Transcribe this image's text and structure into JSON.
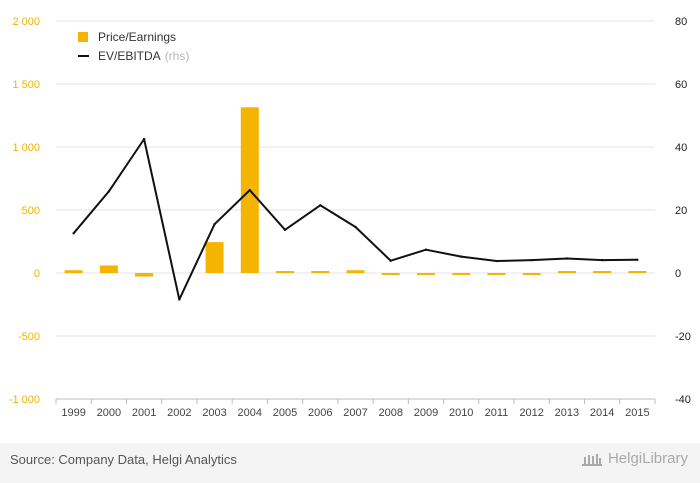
{
  "chart_data": {
    "type": "bar",
    "categories": [
      "1999",
      "2000",
      "2001",
      "2002",
      "2003",
      "2004",
      "2005",
      "2006",
      "2007",
      "2008",
      "2009",
      "2010",
      "2011",
      "2012",
      "2013",
      "2014",
      "2015"
    ],
    "series": [
      {
        "name": "Price/Earnings",
        "type": "bar",
        "axis": "left",
        "values": [
          22,
          60,
          -28,
          0,
          245,
          1315,
          12,
          12,
          22,
          -5,
          -5,
          -5,
          -5,
          -5,
          8,
          5,
          12
        ]
      },
      {
        "name": "EV/EBITDA",
        "type": "line",
        "axis": "right",
        "values": [
          12.6,
          25.9,
          42.5,
          -8.4,
          15.5,
          26.3,
          13.7,
          21.5,
          14.6,
          3.9,
          7.4,
          5.2,
          3.8,
          4.1,
          4.6,
          4.1,
          4.2
        ]
      }
    ],
    "rhs_tag": "(rhs)",
    "yleft": {
      "min": -1000,
      "max": 2000,
      "ticks": [
        -1000,
        -500,
        0,
        500,
        1000,
        1500,
        2000
      ],
      "tick_labels": [
        "-1 000",
        "-500",
        "0",
        "500",
        "1 000",
        "1 500",
        "2 000"
      ]
    },
    "yright": {
      "min": -40,
      "max": 80,
      "ticks": [
        -40,
        -20,
        0,
        20,
        40,
        60,
        80
      ],
      "tick_labels": [
        "-40",
        "-20",
        "0",
        "20",
        "40",
        "60",
        "80"
      ]
    },
    "grid": true,
    "legend": "top-left"
  },
  "footer": {
    "source": "Source: Company Data, Helgi Analytics",
    "logo_text": "HelgiLibrary"
  },
  "colors": {
    "bar": "#f5b400",
    "line": "#111111",
    "left_axis_text": "#f0b400",
    "right_axis_text": "#222222",
    "grid": "#e3e3e3"
  }
}
